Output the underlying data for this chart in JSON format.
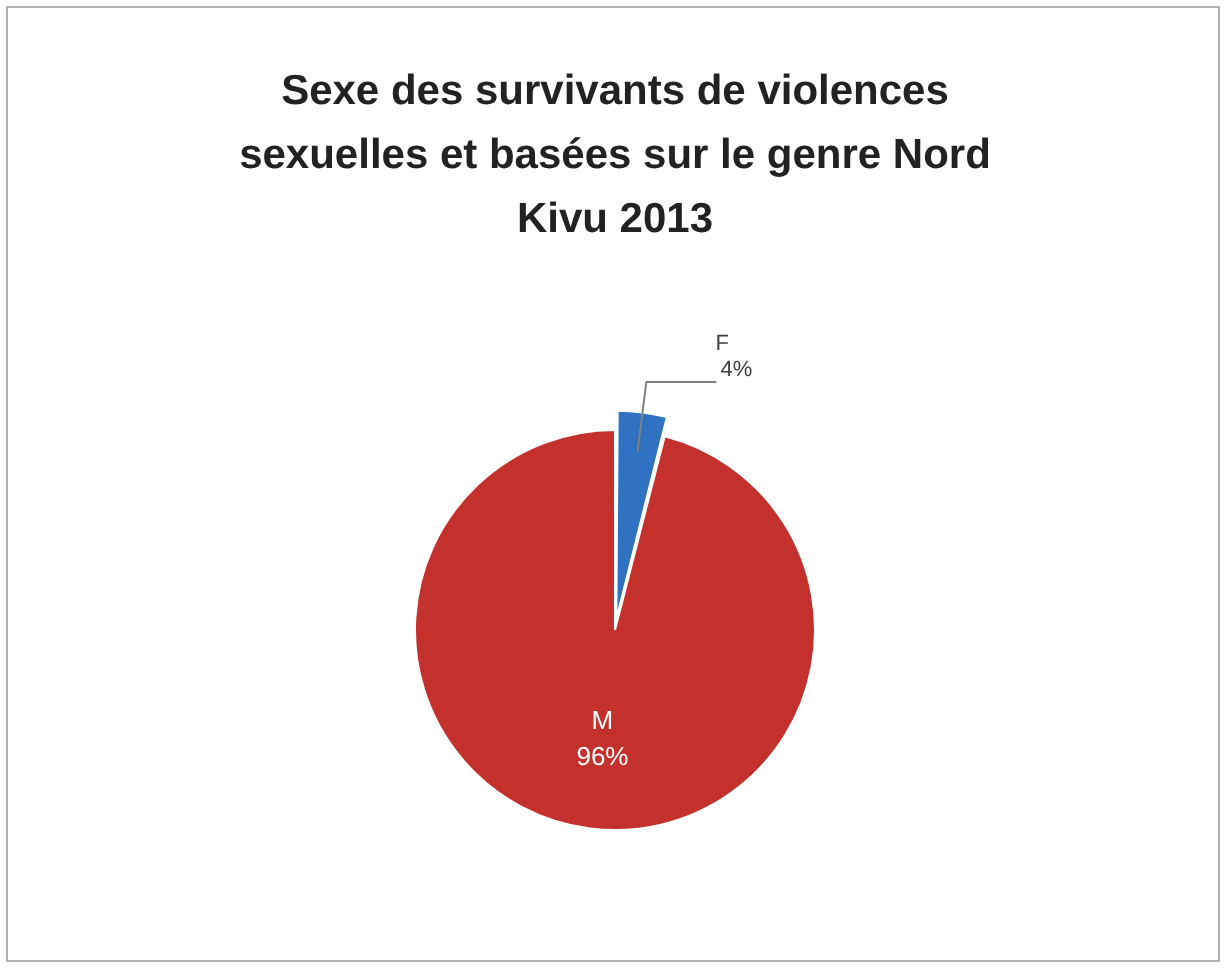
{
  "chart_data": {
    "type": "pie",
    "title": "Sexe des survivants de violences sexuelles et basées sur le genre Nord Kivu 2013",
    "categories": [
      "F",
      "M"
    ],
    "values": [
      4,
      96
    ],
    "colors": [
      "#2f72c2",
      "#c4302b"
    ],
    "value_labels": [
      "4%",
      "96%"
    ],
    "legend": false
  }
}
